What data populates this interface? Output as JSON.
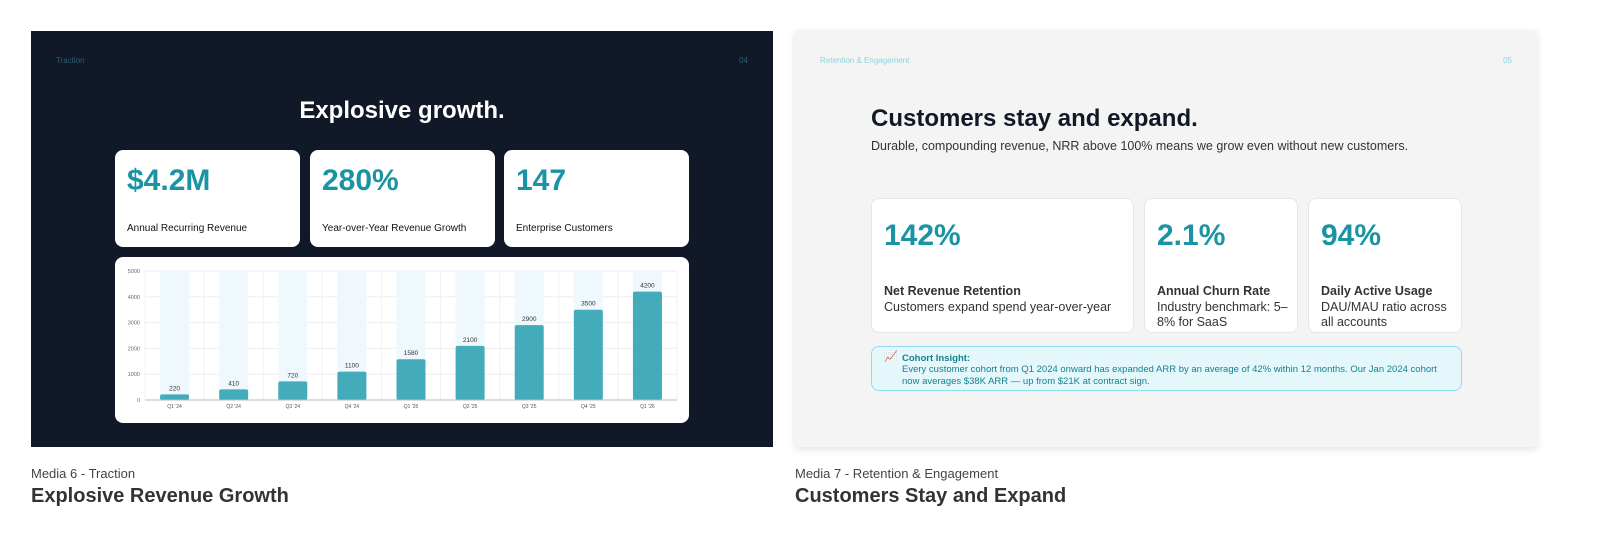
{
  "media6": {
    "caption": "Media 6 - Traction",
    "title": "Explosive Revenue Growth",
    "slide": {
      "section": "Traction",
      "page": "04",
      "heading": "Explosive growth.",
      "kpis": [
        {
          "value": "$4.2M",
          "label": "Annual Recurring Revenue"
        },
        {
          "value": "280%",
          "label": "Year-over-Year Revenue Growth"
        },
        {
          "value": "147",
          "label": "Enterprise Customers"
        }
      ]
    }
  },
  "media7": {
    "caption": "Media 7 - Retention & Engagement",
    "title": "Customers Stay and Expand",
    "slide": {
      "section": "Retention & Engagement",
      "page": "05",
      "heading": "Customers stay and expand.",
      "subheading": "Durable, compounding revenue, NRR above 100% means we grow even without new customers.",
      "cards": [
        {
          "value": "142%",
          "title": "Net Revenue Retention",
          "desc": "Customers expand spend year-over-year"
        },
        {
          "value": "2.1%",
          "title": "Annual Churn Rate",
          "desc": "Industry benchmark: 5–8% for SaaS"
        },
        {
          "value": "94%",
          "title": "Daily Active Usage",
          "desc": "DAU/MAU ratio across all accounts"
        }
      ],
      "insight": {
        "icon": "chart-increasing-icon",
        "title": "Cohort Insight:",
        "text": "Every customer cohort from Q1 2024 onward has expanded ARR by an average of 42% within 12 months. Our Jan 2024 cohort now averages $38K ARR — up from $21K at contract sign."
      }
    }
  },
  "chart_data": {
    "type": "bar",
    "title": "",
    "xlabel": "",
    "ylabel": "",
    "categories": [
      "Q1 '24",
      "Q2 '24",
      "Q3 '24",
      "Q4 '24",
      "Q1 '25",
      "Q2 '25",
      "Q3 '25",
      "Q4 '25",
      "Q1 '26"
    ],
    "values": [
      220,
      410,
      720,
      1100,
      1580,
      2100,
      2900,
      3500,
      4200
    ],
    "ylim": [
      0,
      5000
    ],
    "yticks": [
      "0",
      "1000",
      "2000",
      "3000",
      "4000",
      "5000"
    ],
    "grid": true,
    "color": "#44abbb"
  }
}
